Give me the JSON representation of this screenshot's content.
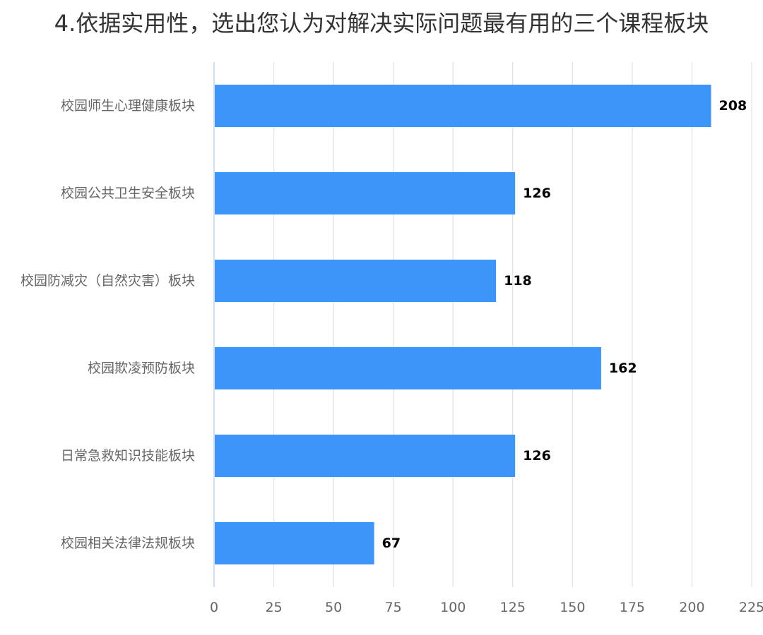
{
  "chart_data": {
    "type": "bar",
    "orientation": "horizontal",
    "title": "4.依据实用性，选出您认为对解决实际问题最有用的三个课程板块",
    "categories": [
      "校园师生心理健康板块",
      "校园公共卫生安全板块",
      "校园防减灾（自然灾害）板块",
      "校园欺凌预防板块",
      "日常急救知识技能板块",
      "校园相关法律法规板块"
    ],
    "values": [
      208,
      126,
      118,
      162,
      126,
      67
    ],
    "xlim": [
      0,
      225
    ],
    "ticks": [
      0,
      25,
      50,
      75,
      100,
      125,
      150,
      175,
      200,
      225
    ],
    "xlabel": "",
    "ylabel": "",
    "grid": true,
    "legend": "none",
    "bar_color": "#3c96fa",
    "grid_color": "#e6e6e6",
    "axis_color": "#c3d4ee"
  }
}
